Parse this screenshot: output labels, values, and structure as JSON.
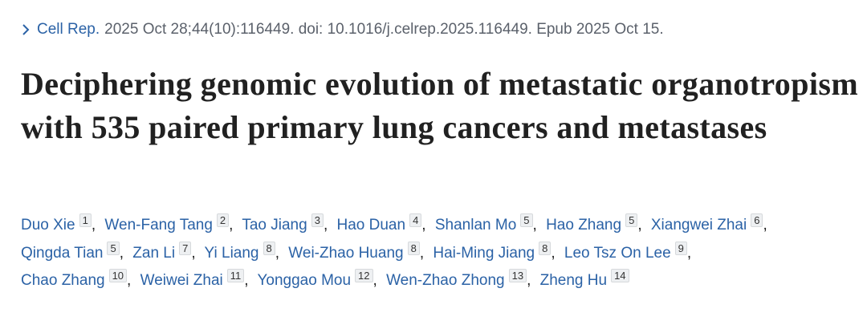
{
  "citation": {
    "journal": "Cell Rep.",
    "details": "2025 Oct 28;44(10):116449. doi: 10.1016/j.celrep.2025.116449. Epub 2025 Oct 15."
  },
  "title": "Deciphering genomic evolution of metastatic organotropism with 535 paired primary lung cancers and metastases",
  "authors": {
    "separator": ",",
    "list": [
      {
        "name": "Duo Xie",
        "aff": "1"
      },
      {
        "name": "Wen-Fang Tang",
        "aff": "2"
      },
      {
        "name": "Tao Jiang",
        "aff": "3"
      },
      {
        "name": "Hao Duan",
        "aff": "4"
      },
      {
        "name": "Shanlan Mo",
        "aff": "5"
      },
      {
        "name": "Hao Zhang",
        "aff": "5"
      },
      {
        "name": "Xiangwei Zhai",
        "aff": "6"
      },
      {
        "name": "Qingda Tian",
        "aff": "5"
      },
      {
        "name": "Zan Li",
        "aff": "7"
      },
      {
        "name": "Yi Liang",
        "aff": "8"
      },
      {
        "name": "Wei-Zhao Huang",
        "aff": "8"
      },
      {
        "name": "Hai-Ming Jiang",
        "aff": "8"
      },
      {
        "name": "Leo Tsz On Lee",
        "aff": "9"
      },
      {
        "name": "Chao Zhang",
        "aff": "10"
      },
      {
        "name": "Weiwei Zhai",
        "aff": "11"
      },
      {
        "name": "Yonggao Mou",
        "aff": "12"
      },
      {
        "name": "Wen-Zhao Zhong",
        "aff": "13"
      },
      {
        "name": "Zheng Hu",
        "aff": "14"
      }
    ]
  }
}
